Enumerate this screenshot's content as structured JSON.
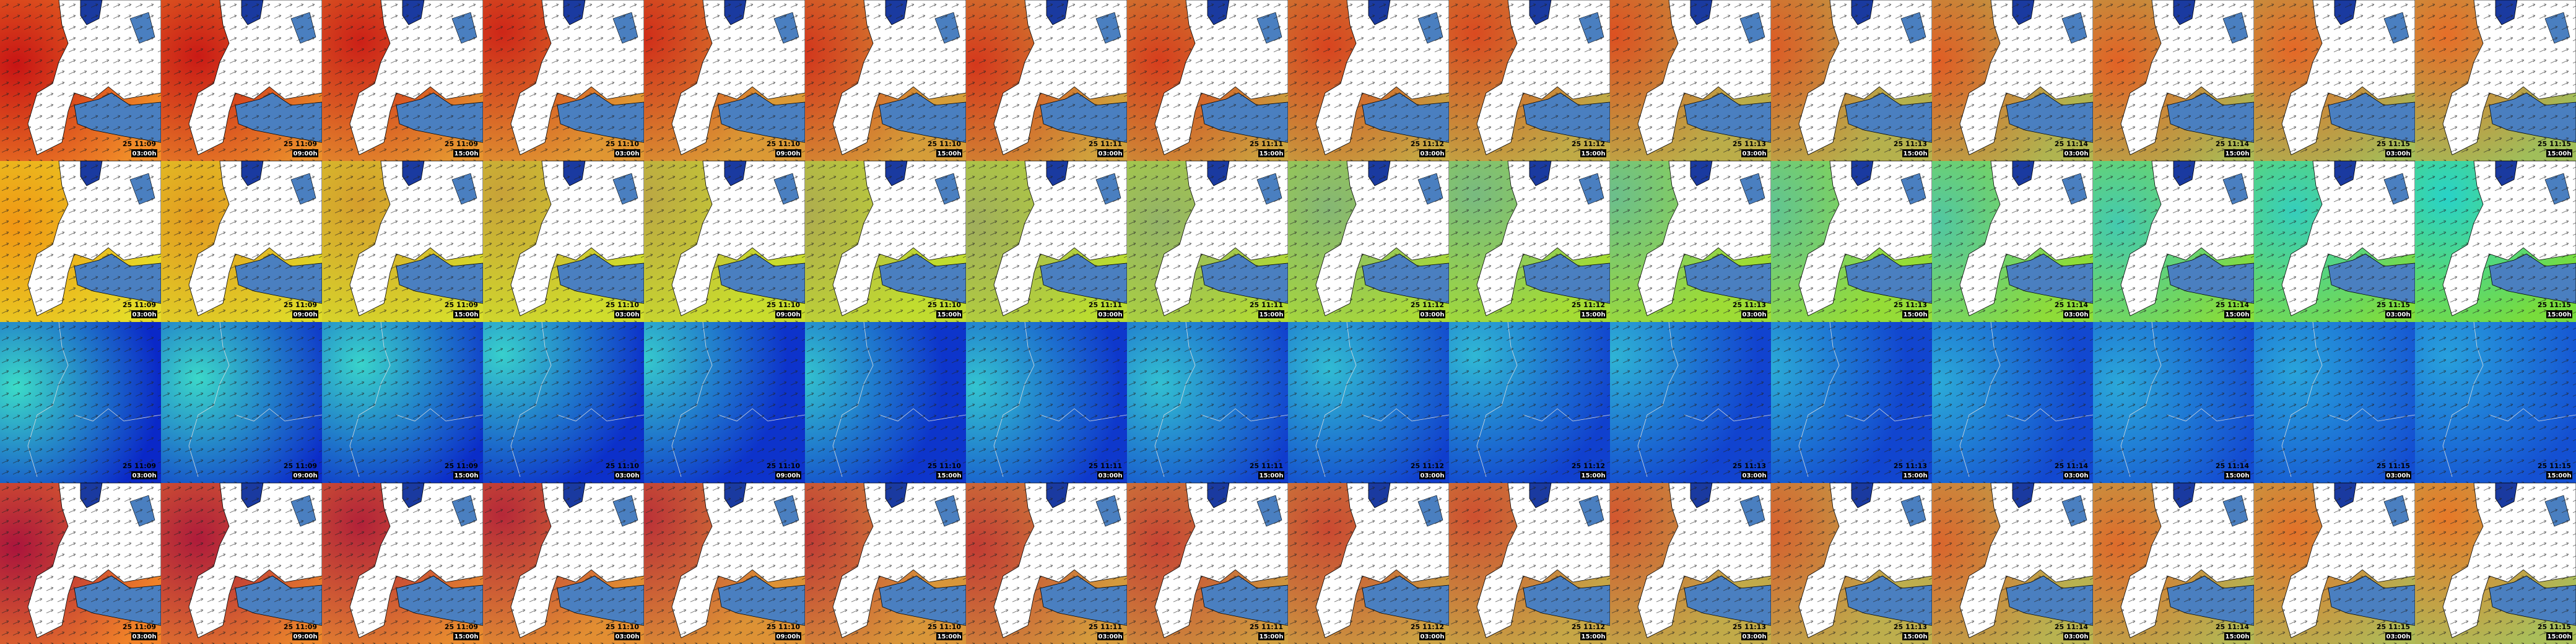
{
  "columns": [
    {
      "date": "25 11:09",
      "time": "03:00h"
    },
    {
      "date": "25 11:09",
      "time": "09:00h"
    },
    {
      "date": "25 11:09",
      "time": "15:00h"
    },
    {
      "date": "25 11:10",
      "time": "03:00h"
    },
    {
      "date": "25 11:10",
      "time": "09:00h"
    },
    {
      "date": "25 11:10",
      "time": "15:00h"
    },
    {
      "date": "25 11:11",
      "time": "03:00h"
    },
    {
      "date": "25 11:11",
      "time": "15:00h"
    },
    {
      "date": "25 11:12",
      "time": "03:00h"
    },
    {
      "date": "25 11:12",
      "time": "15:00h"
    },
    {
      "date": "25 11:13",
      "time": "03:00h"
    },
    {
      "date": "25 11:13",
      "time": "15:00h"
    },
    {
      "date": "25 11:14",
      "time": "03:00h"
    },
    {
      "date": "25 11:14",
      "time": "15:00h"
    },
    {
      "date": "25 11:15",
      "time": "03:00h"
    },
    {
      "date": "25 11:15",
      "time": "15:00h"
    }
  ]
}
